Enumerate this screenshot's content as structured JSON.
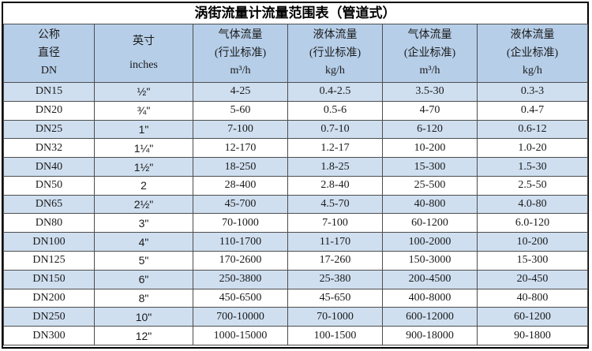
{
  "chart_data": {
    "type": "table",
    "title": "涡街流量计流量范围表（管道式）",
    "columns": [
      {
        "id": "dn",
        "lines": [
          "公称",
          "直径",
          "DN"
        ]
      },
      {
        "id": "inches",
        "lines": [
          "英寸",
          "inches"
        ]
      },
      {
        "id": "gas-industry",
        "lines": [
          "气体流量",
          "(行业标准)",
          "m³/h"
        ]
      },
      {
        "id": "liquid-industry",
        "lines": [
          "液体流量",
          "(行业标准)",
          "kg/h"
        ]
      },
      {
        "id": "gas-enterprise",
        "lines": [
          "气体流量",
          "(企业标准)",
          "m³/h"
        ]
      },
      {
        "id": "liquid-enterprise",
        "lines": [
          "液体流量",
          "(企业标准)",
          "kg/h"
        ]
      }
    ],
    "rows": [
      [
        "DN15",
        "½\"",
        "4-25",
        "0.4-2.5",
        "3.5-30",
        "0.3-3"
      ],
      [
        "DN20",
        "¾\"",
        "5-60",
        "0.5-6",
        "4-70",
        "0.4-7"
      ],
      [
        "DN25",
        "1\"",
        "7-100",
        "0.7-10",
        "6-120",
        "0.6-12"
      ],
      [
        "DN32",
        "1¼\"",
        "12-170",
        "1.2-17",
        "10-200",
        "1.0-20"
      ],
      [
        "DN40",
        "1½\"",
        "18-250",
        "1.8-25",
        "15-300",
        "1.5-30"
      ],
      [
        "DN50",
        "2",
        "28-400",
        "2.8-40",
        "25-500",
        "2.5-50"
      ],
      [
        "DN65",
        "2½\"",
        "45-700",
        "4.5-70",
        "40-800",
        "4.0-80"
      ],
      [
        "DN80",
        "3\"",
        "70-1000",
        "7-100",
        "60-1200",
        "6.0-120"
      ],
      [
        "DN100",
        "4\"",
        "110-1700",
        "11-170",
        "100-2000",
        "10-200"
      ],
      [
        "DN125",
        "5\"",
        "170-2600",
        "17-260",
        "150-3000",
        "15-300"
      ],
      [
        "DN150",
        "6\"",
        "250-3800",
        "25-380",
        "200-4500",
        "20-450"
      ],
      [
        "DN200",
        "8\"",
        "450-6500",
        "45-650",
        "400-8000",
        "40-800"
      ],
      [
        "DN250",
        "10\"",
        "700-10000",
        "70-1000",
        "600-12000",
        "60-1200"
      ],
      [
        "DN300",
        "12\"",
        "1000-15000",
        "100-1500",
        "900-18000",
        "90-1800"
      ]
    ]
  },
  "colors": {
    "header_bg": "#b6cee8",
    "band_bg": "#cfdff0",
    "border": "#4d4d4d",
    "outer_border": "#000000",
    "text": "#1a1a1a",
    "title_text": "#000000"
  }
}
